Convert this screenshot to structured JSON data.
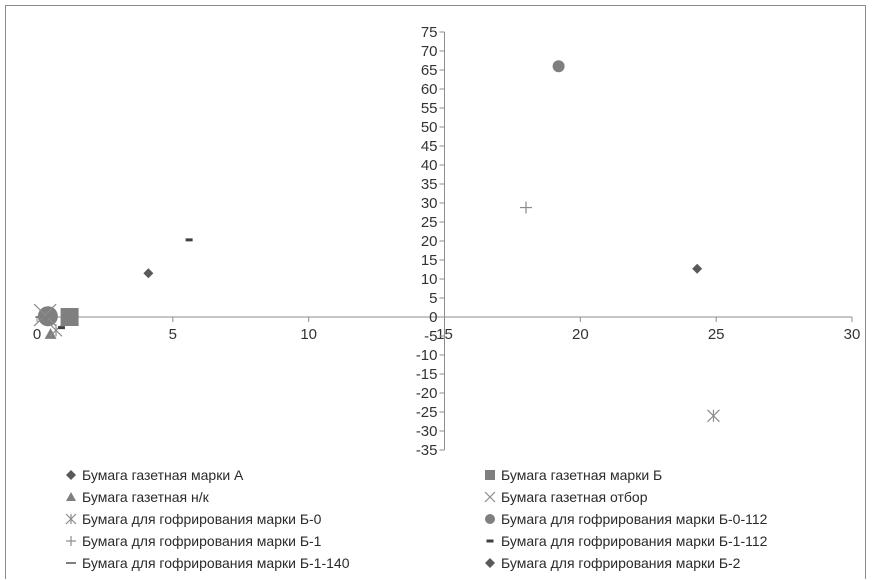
{
  "chart_data": {
    "type": "scatter",
    "title": "",
    "xlabel": "",
    "ylabel": "",
    "xlim": [
      0,
      30
    ],
    "ylim": [
      -35,
      75
    ],
    "x_ticks": [
      "0",
      "5",
      "10",
      "15",
      "20",
      "25",
      "30"
    ],
    "y_ticks": [
      "75",
      "70",
      "65",
      "60",
      "55",
      "50",
      "45",
      "40",
      "35",
      "30",
      "25",
      "20",
      "15",
      "10",
      "5",
      "0",
      "-5",
      "-10",
      "-15",
      "-20",
      "-25",
      "-30",
      "-35"
    ],
    "grid": false,
    "legend_position": "bottom",
    "series": [
      {
        "name": "Бумага газетная марки А",
        "marker": "diamond",
        "color": "#595959",
        "points": [
          [
            4.1,
            11.5
          ]
        ]
      },
      {
        "name": "Бумага газетная марки Б",
        "marker": "square",
        "color": "#7f7f7f",
        "points": [
          [
            1.2,
            0
          ]
        ]
      },
      {
        "name": "Бумага газетная н/к",
        "marker": "triangle",
        "color": "#7f7f7f",
        "points": [
          [
            0.5,
            -4.5
          ]
        ]
      },
      {
        "name": "Бумага газетная отбор",
        "marker": "x",
        "color": "#8c8c8c",
        "points": [
          [
            0.3,
            0.5
          ]
        ]
      },
      {
        "name": "Бумага для гофрирования марки Б-0",
        "marker": "asterisk",
        "color": "#8c8c8c",
        "points": [
          [
            0.7,
            -3.5
          ],
          [
            24.9,
            -26
          ]
        ]
      },
      {
        "name": "Бумага для гофрирования марки Б-0-112",
        "marker": "circle",
        "color": "#7f7f7f",
        "points": [
          [
            0.4,
            0.2
          ],
          [
            19.2,
            66
          ]
        ]
      },
      {
        "name": "Бумага для гофрирования марки Б-1",
        "marker": "plus",
        "color": "#8c8c8c",
        "points": [
          [
            18.0,
            28.8
          ]
        ]
      },
      {
        "name": "Бумага для гофрирования марки Б-1-112",
        "marker": "short-dash",
        "color": "#404040",
        "points": [
          [
            5.6,
            20.3
          ],
          [
            0.9,
            -2.8
          ]
        ]
      },
      {
        "name": "Бумага для гофрирования марки Б-1-140",
        "marker": "long-dash",
        "color": "#7f7f7f",
        "points": [
          [
            0.2,
            0
          ]
        ]
      },
      {
        "name": "Бумага для гофрирования марки Б-2",
        "marker": "diamond",
        "color": "#595959",
        "points": [
          [
            24.3,
            12.7
          ]
        ]
      }
    ]
  }
}
